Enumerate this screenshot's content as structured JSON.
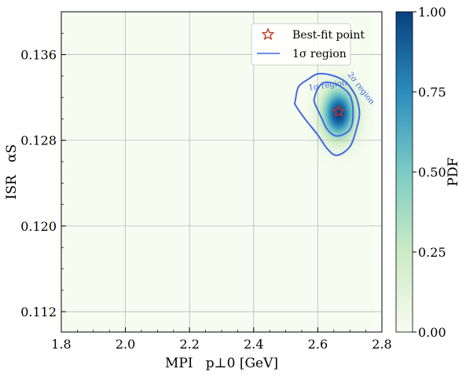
{
  "chart_data": {
    "type": "heatmap",
    "xlabel": "MPI   p⊥0 [GeV]",
    "ylabel": "ISR   αS",
    "xlim": [
      1.8,
      2.8
    ],
    "ylim": [
      0.1101,
      0.14
    ],
    "x_ticks": [
      "1.8",
      "2.0",
      "2.2",
      "2.4",
      "2.6",
      "2.8"
    ],
    "y_ticks": [
      "0.112",
      "0.120",
      "0.128",
      "0.136"
    ],
    "grid": true,
    "colorbar": {
      "label": "PDF",
      "range": [
        0.0,
        1.0
      ],
      "ticks": [
        "0.00",
        "0.25",
        "0.50",
        "0.75",
        "1.00"
      ],
      "colors": [
        "#f7fcf0",
        "#ccebc5",
        "#7bccc4",
        "#2b8cbe",
        "#084081"
      ]
    },
    "best_fit": {
      "x": 2.665,
      "y": 0.1307,
      "marker": "star",
      "color": "#c0392b"
    },
    "pdf_peak": {
      "x": 2.665,
      "y": 0.1305,
      "sigma_x": 0.035,
      "sigma_y": 0.0016,
      "max": 1.0
    },
    "contours": [
      {
        "label": "1σ region",
        "points": [
          [
            2.59,
            0.132
          ],
          [
            2.6,
            0.1328
          ],
          [
            2.62,
            0.1334
          ],
          [
            2.66,
            0.1332
          ],
          [
            2.7,
            0.1322
          ],
          [
            2.71,
            0.1305
          ],
          [
            2.7,
            0.129
          ],
          [
            2.66,
            0.1284
          ],
          [
            2.63,
            0.129
          ],
          [
            2.61,
            0.1302
          ],
          [
            2.59,
            0.1315
          ]
        ]
      },
      {
        "label": "2σ region",
        "points": [
          [
            2.53,
            0.1317
          ],
          [
            2.54,
            0.133
          ],
          [
            2.57,
            0.1337
          ],
          [
            2.6,
            0.1342
          ],
          [
            2.64,
            0.1341
          ],
          [
            2.68,
            0.1336
          ],
          [
            2.7,
            0.133
          ],
          [
            2.72,
            0.132
          ],
          [
            2.73,
            0.1305
          ],
          [
            2.72,
            0.129
          ],
          [
            2.7,
            0.1274
          ],
          [
            2.66,
            0.1266
          ],
          [
            2.63,
            0.1272
          ],
          [
            2.6,
            0.1285
          ],
          [
            2.56,
            0.13
          ],
          [
            2.53,
            0.1313
          ]
        ]
      }
    ],
    "legend": {
      "position": "top-right",
      "entries": [
        {
          "label": "Best-fit point",
          "marker": "star",
          "color": "#c0392b"
        },
        {
          "label": "1σ region",
          "marker": "line",
          "color": "#6f8fe6"
        }
      ]
    }
  }
}
